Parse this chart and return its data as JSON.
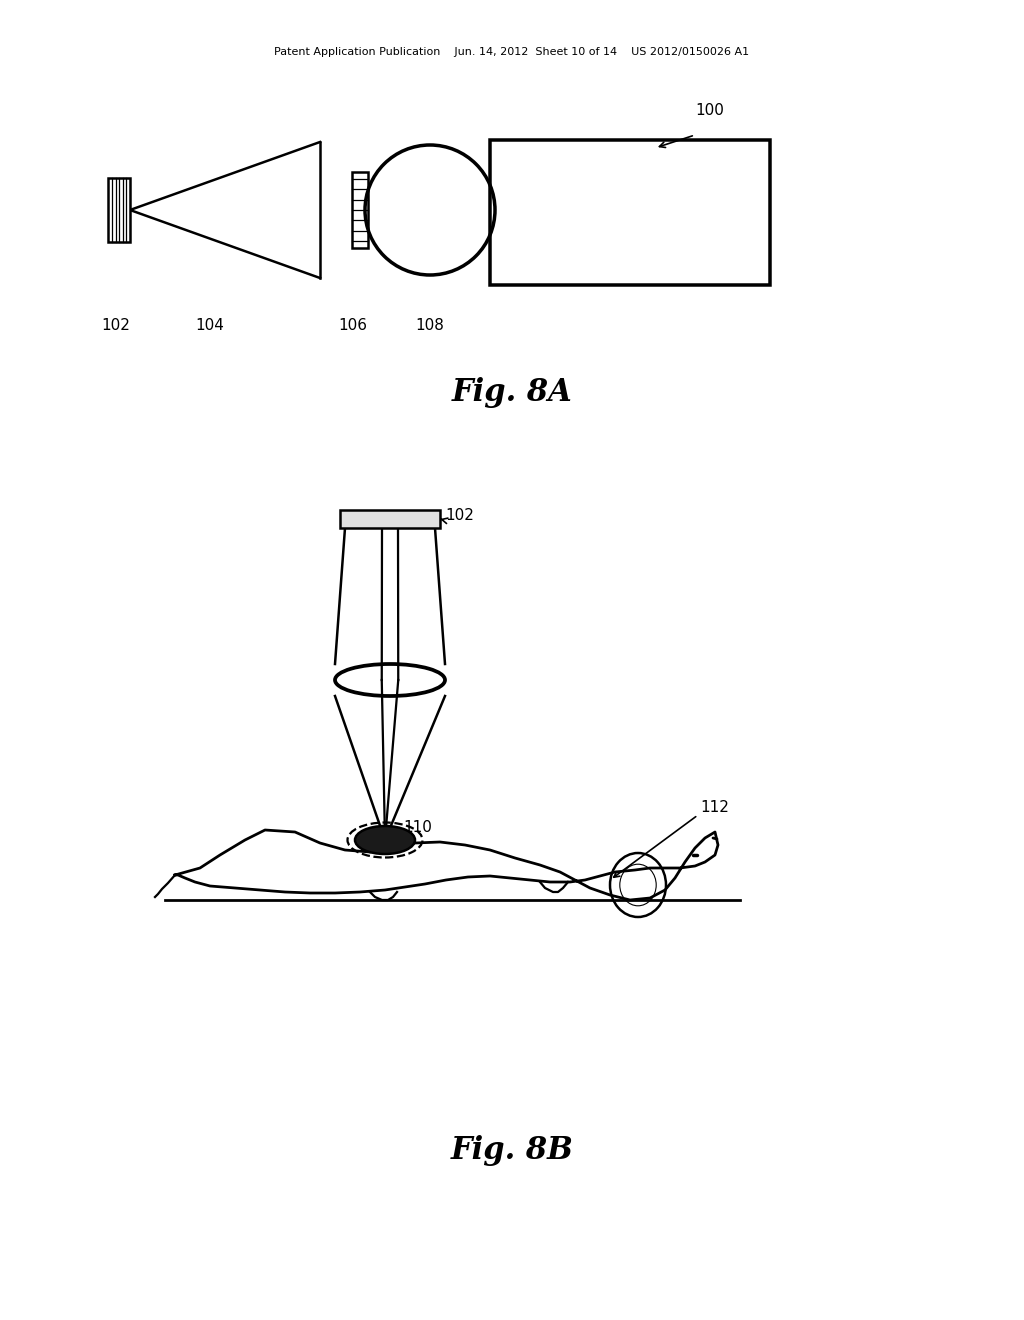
{
  "bg_color": "#ffffff",
  "line_color": "#000000",
  "header_text_left": "Patent Application Publication",
  "header_text_mid": "Jun. 14, 2012  Sheet 10 of 14",
  "header_text_right": "US 2012/0150026 A1",
  "fig8a_label": "Fig. 8A",
  "fig8b_label": "Fig. 8B",
  "fig_width": 10.24,
  "fig_height": 13.2,
  "dpi": 100
}
